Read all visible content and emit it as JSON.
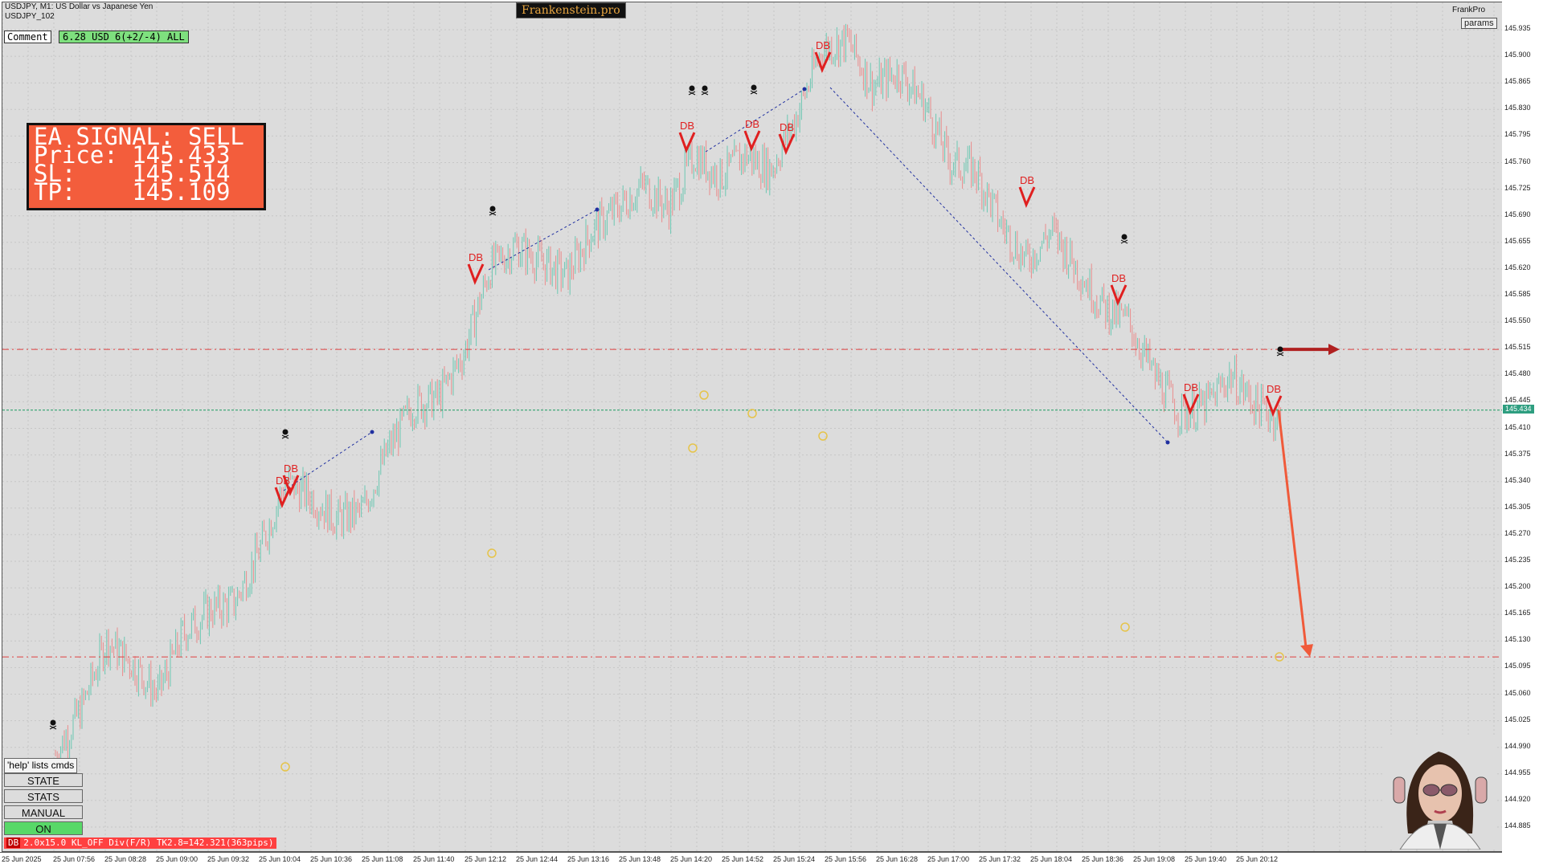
{
  "window": {
    "symbol_line": "USDJPY, M1:  US Dollar vs Japanese Yen",
    "account_line": "USDJPY_102",
    "brand": "Frankenstein.pro",
    "right_label": "FrankPro",
    "params_label": "params"
  },
  "comment": {
    "label": "Comment",
    "stats": "6.28 USD 6(+2/-4) ALL"
  },
  "signal_panel": {
    "line1": "EA SIGNAL: SELL",
    "line2": "Price: 145.433",
    "line3": "SL:    145.514",
    "line4": "TP:    145.109"
  },
  "controls": {
    "help": "'help' lists cmds",
    "state": "STATE",
    "stats": "STATS",
    "manual": "MANUAL",
    "on": "ON"
  },
  "status_bar": {
    "tag": "DB",
    "text": "2.0x15.0 KL_OFF Div(F/R) TK2.8=142.321(363pips)"
  },
  "price_axis": {
    "labels": [
      "145.935",
      "145.900",
      "145.865",
      "145.830",
      "145.795",
      "145.760",
      "145.725",
      "145.690",
      "145.655",
      "145.620",
      "145.585",
      "145.550",
      "145.515",
      "145.480",
      "145.445",
      "145.410",
      "145.375",
      "145.340",
      "145.305",
      "145.270",
      "145.235",
      "145.200",
      "145.165",
      "145.130",
      "145.095",
      "145.060",
      "145.025",
      "144.990",
      "144.955",
      "144.920",
      "144.885"
    ],
    "current_price": "145.434"
  },
  "time_axis": {
    "labels": [
      "25 Jun 2025",
      "25 Jun 07:56",
      "25 Jun 08:28",
      "25 Jun 09:00",
      "25 Jun 09:32",
      "25 Jun 10:04",
      "25 Jun 10:36",
      "25 Jun 11:08",
      "25 Jun 11:40",
      "25 Jun 12:12",
      "25 Jun 12:44",
      "25 Jun 13:16",
      "25 Jun 13:48",
      "25 Jun 14:20",
      "25 Jun 14:52",
      "25 Jun 15:24",
      "25 Jun 15:56",
      "25 Jun 16:28",
      "25 Jun 17:00",
      "25 Jun 17:32",
      "25 Jun 18:04",
      "25 Jun 18:36",
      "25 Jun 19:08",
      "25 Jun 19:40",
      "25 Jun 20:12"
    ]
  },
  "markers": {
    "pattern_label": "DB"
  },
  "chart_data": {
    "type": "line",
    "title": "",
    "xlabel": "",
    "ylabel": "",
    "ylim": [
      144.855,
      145.95
    ],
    "x": [
      "07:40",
      "07:56",
      "08:12",
      "08:28",
      "08:44",
      "09:00",
      "09:16",
      "09:32",
      "09:48",
      "10:04",
      "10:20",
      "10:36",
      "10:52",
      "11:08",
      "11:24",
      "11:40",
      "11:56",
      "12:12",
      "12:28",
      "12:44",
      "13:00",
      "13:16",
      "13:32",
      "13:48",
      "14:04",
      "14:20",
      "14:36",
      "14:52",
      "15:08",
      "15:24",
      "15:40",
      "15:56",
      "16:12",
      "16:28",
      "16:44",
      "17:00",
      "17:16",
      "17:32",
      "17:48",
      "18:04",
      "18:20",
      "18:36",
      "18:52",
      "19:08",
      "19:24",
      "19:40",
      "19:56",
      "20:12",
      "20:20"
    ],
    "series": [
      {
        "values": [
          144.98,
          145.04,
          145.13,
          145.1,
          145.06,
          145.14,
          145.17,
          145.18,
          145.25,
          145.34,
          145.32,
          145.29,
          145.3,
          145.38,
          145.44,
          145.45,
          145.51,
          145.62,
          145.65,
          145.63,
          145.61,
          145.67,
          145.7,
          145.73,
          145.7,
          145.77,
          145.74,
          145.77,
          145.75,
          145.82,
          145.91,
          145.92,
          145.86,
          145.88,
          145.84,
          145.76,
          145.75,
          145.68,
          145.63,
          145.67,
          145.62,
          145.57,
          145.55,
          145.48,
          145.43,
          145.44,
          145.48,
          145.44,
          145.42
        ]
      }
    ],
    "levels": {
      "sl": 145.514,
      "entry": 145.434,
      "tp": 145.109
    },
    "grid": true,
    "colors": {
      "up_candle": "#6cc7b2",
      "down_candle": "#e98c8c",
      "sl_line": "#e04040",
      "price_line": "#1a9a60",
      "tp_arrow": "#f05a3a",
      "sl_arrow": "#b02020"
    }
  }
}
